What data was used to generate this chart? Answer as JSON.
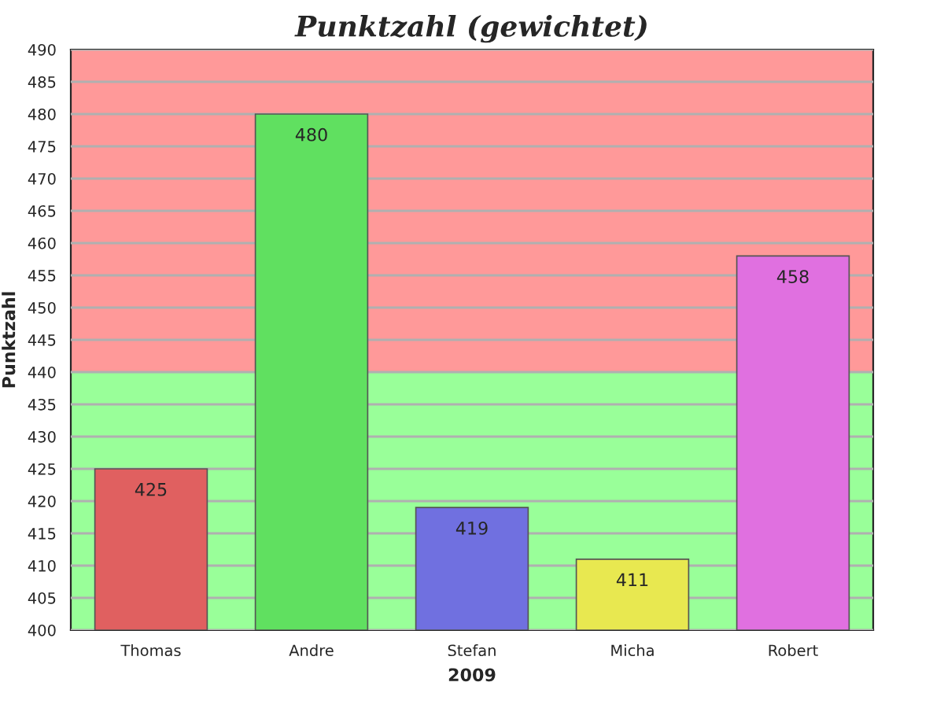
{
  "chart_data": {
    "type": "bar",
    "title": "Punktzahl (gewichtet)",
    "xlabel": "2009",
    "ylabel": "Punktzahl",
    "categories": [
      "Thomas",
      "Andre",
      "Stefan",
      "Micha",
      "Robert"
    ],
    "values": [
      425,
      480,
      419,
      411,
      458
    ],
    "colors": [
      "#e06060",
      "#60e060",
      "#7070e0",
      "#e8e850",
      "#e070e0"
    ],
    "ylim": [
      400,
      490
    ],
    "yticks": [
      400,
      405,
      410,
      415,
      420,
      425,
      430,
      435,
      440,
      445,
      450,
      455,
      460,
      465,
      470,
      475,
      480,
      485,
      490
    ],
    "grid": "y",
    "data_labels": true,
    "bands": [
      {
        "axis": "y",
        "from": 400,
        "to": 440,
        "color": "#99ff99"
      },
      {
        "axis": "y",
        "from": 440,
        "to": 490,
        "color": "#ff9999"
      }
    ]
  }
}
